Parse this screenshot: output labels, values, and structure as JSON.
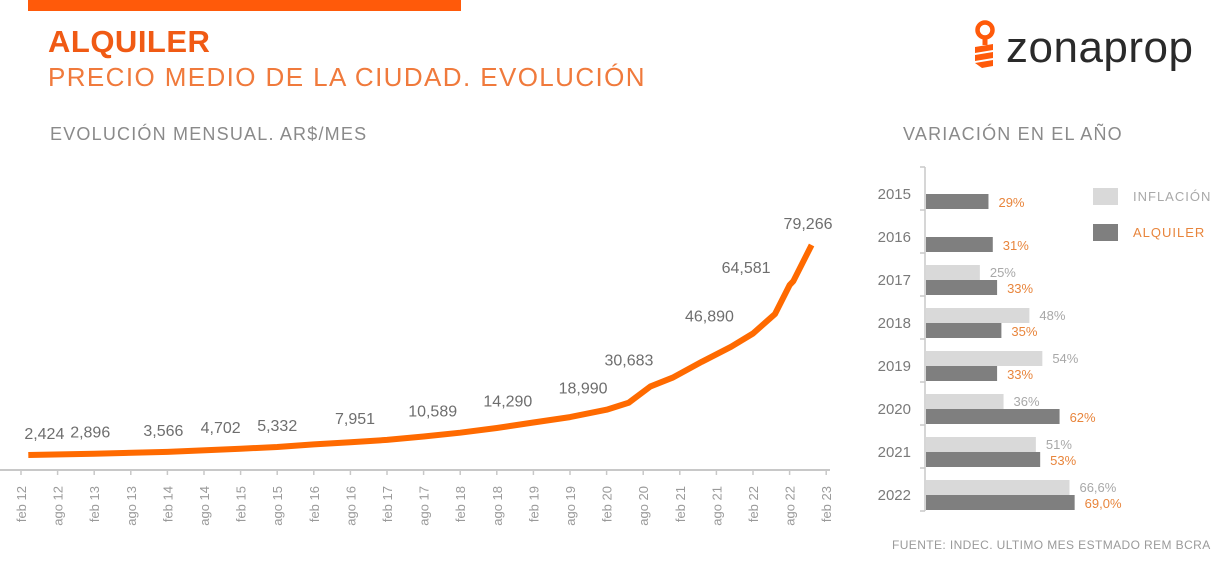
{
  "header": {
    "title": "ALQUILER",
    "subtitle": "PRECIO MEDIO DE LA CIUDAD. EVOLUCIÓN"
  },
  "logo": {
    "text": "zonaprop",
    "icon": "key-icon"
  },
  "colors": {
    "brand_orange": "#f05a14",
    "line_orange": "#ff6a00",
    "inflation_bar": "#d9d9d9",
    "rent_bar": "#7f7f7f",
    "label_gray": "#8a8a8a",
    "label_orange": "#e8853c"
  },
  "source_note": "FUENTE: INDEC. ULTIMO MES ESTMADO REM BCRA",
  "chart_data": [
    {
      "type": "line",
      "title": "EVOLUCIÓN MENSUAL. AR$/MES",
      "xlabel": "",
      "ylabel": "",
      "x_ticks": [
        "feb 12",
        "ago 12",
        "feb 13",
        "ago 13",
        "feb 14",
        "ago 14",
        "feb 15",
        "ago 15",
        "feb 16",
        "ago 16",
        "feb 17",
        "ago 17",
        "feb 18",
        "ago 18",
        "feb 19",
        "ago 19",
        "feb 20",
        "ago 20",
        "feb 21",
        "ago 21",
        "feb 22",
        "ago 22",
        "feb 23"
      ],
      "x_range_index": [
        0,
        22
      ],
      "ylim": [
        0,
        80000
      ],
      "grid": false,
      "series": [
        {
          "name": "Precio medio alquiler",
          "points": [
            {
              "x": 0.2,
              "y": 2424,
              "label": "2,424"
            },
            {
              "x": 2.0,
              "y": 2896,
              "label": "2,896"
            },
            {
              "x": 4.0,
              "y": 3566,
              "label": "3,566"
            },
            {
              "x": 6.0,
              "y": 4702,
              "label": "4,702"
            },
            {
              "x": 7.0,
              "y": 5332,
              "label": "5,332"
            },
            {
              "x": 8.0,
              "y": 6300
            },
            {
              "x": 9.0,
              "y": 7100
            },
            {
              "x": 10.0,
              "y": 7951,
              "label": "7,951"
            },
            {
              "x": 11.0,
              "y": 9200
            },
            {
              "x": 12.0,
              "y": 10589,
              "label": "10,589"
            },
            {
              "x": 13.0,
              "y": 12300
            },
            {
              "x": 14.0,
              "y": 14290,
              "label": "14,290"
            },
            {
              "x": 15.0,
              "y": 16300
            },
            {
              "x": 16.0,
              "y": 18990,
              "label": "18,990"
            },
            {
              "x": 16.6,
              "y": 21500
            },
            {
              "x": 17.2,
              "y": 27500
            },
            {
              "x": 17.8,
              "y": 30683,
              "label": "30,683"
            },
            {
              "x": 18.6,
              "y": 36500
            },
            {
              "x": 19.4,
              "y": 42000
            },
            {
              "x": 20.0,
              "y": 46890,
              "label": "46,890"
            },
            {
              "x": 20.6,
              "y": 54000
            },
            {
              "x": 21.0,
              "y": 64581,
              "label": "64,581"
            },
            {
              "x": 21.1,
              "y": 66000
            },
            {
              "x": 21.6,
              "y": 79266,
              "label": "79,266"
            }
          ]
        }
      ]
    },
    {
      "type": "bar",
      "orientation": "horizontal",
      "title": "VARIACIÓN EN EL AÑO",
      "categories": [
        "2015",
        "2016",
        "2017",
        "2018",
        "2019",
        "2020",
        "2021",
        "2022"
      ],
      "legend": [
        "INFLACIÓN",
        "ALQUILER"
      ],
      "legend_position": "top-right",
      "series": [
        {
          "name": "INFLACIÓN",
          "values": [
            null,
            null,
            25,
            48,
            54,
            36,
            51,
            66.6
          ],
          "labels": [
            "",
            "",
            "25%",
            "48%",
            "54%",
            "36%",
            "51%",
            "66,6%"
          ]
        },
        {
          "name": "ALQUILER",
          "values": [
            29,
            31,
            33,
            35,
            33,
            62,
            53,
            69.0
          ],
          "labels": [
            "29%",
            "31%",
            "33%",
            "35%",
            "33%",
            "62%",
            "53%",
            "69,0%"
          ]
        }
      ],
      "xlim": [
        0,
        100
      ]
    }
  ]
}
